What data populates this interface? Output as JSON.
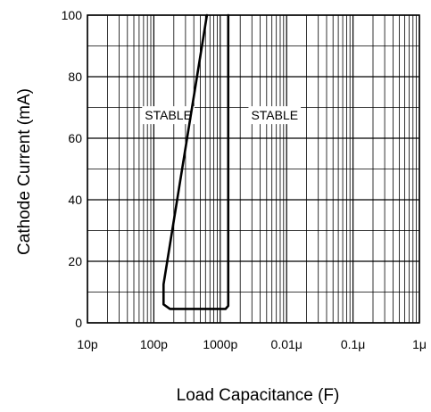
{
  "chart_data": {
    "type": "line",
    "xlabel": "Load Capacitance (F)",
    "ylabel": "Cathode Current (mA)",
    "x_scale": "log",
    "xlim": [
      1e-11,
      1e-06
    ],
    "ylim": [
      0,
      100
    ],
    "x_ticks": [
      {
        "value": 1e-11,
        "label": "10p"
      },
      {
        "value": 1e-10,
        "label": "100p"
      },
      {
        "value": 1e-09,
        "label": "1000p"
      },
      {
        "value": 1e-08,
        "label": "0.01μ"
      },
      {
        "value": 1e-07,
        "label": "0.1μ"
      },
      {
        "value": 1e-06,
        "label": "1μ"
      }
    ],
    "y_ticks": [
      0,
      20,
      40,
      60,
      80,
      100
    ],
    "grid": true,
    "series": [
      {
        "color": "#000000",
        "points": [
          {
            "x": 6.3e-10,
            "y": 100
          },
          {
            "x": 1.4e-10,
            "y": 12.5
          },
          {
            "x": 1.4e-10,
            "y": 6
          },
          {
            "x": 1.75e-10,
            "y": 4.5
          },
          {
            "x": 1.2e-09,
            "y": 4.5
          },
          {
            "x": 1.32e-09,
            "y": 5.5
          },
          {
            "x": 1.32e-09,
            "y": 100
          }
        ]
      }
    ],
    "annotations": [
      {
        "text": "STABLE",
        "x": 1.65e-10,
        "y": 67.5
      },
      {
        "text": "STABLE",
        "x": 6.6e-09,
        "y": 67.5
      }
    ]
  }
}
